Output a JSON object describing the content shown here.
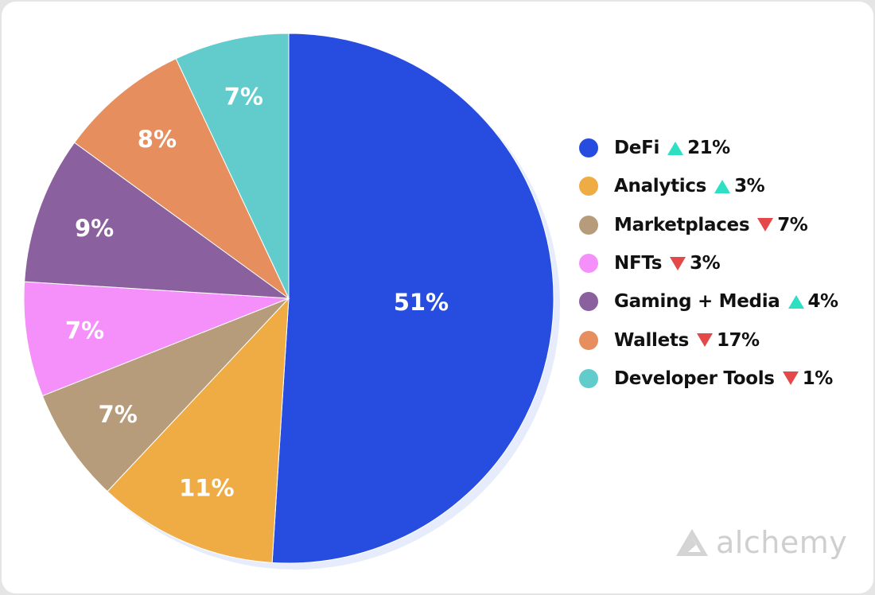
{
  "chart_data": {
    "type": "pie",
    "title": "",
    "start_angle_deg": 0,
    "direction": "clockwise",
    "categories": [
      "DeFi",
      "Analytics",
      "Marketplaces",
      "NFTs",
      "Gaming + Media",
      "Wallets",
      "Developer Tools"
    ],
    "values": [
      51,
      11,
      7,
      7,
      9,
      8,
      7
    ],
    "slice_labels": [
      "51%",
      "11%",
      "7%",
      "7%",
      "9%",
      "8%",
      "7%"
    ],
    "colors": [
      "#264ddf",
      "#efac45",
      "#b69c7a",
      "#f590fb",
      "#8a609f",
      "#e78e5f",
      "#62cccc"
    ],
    "legend": {
      "position": "right",
      "items": [
        {
          "label": "DeFi",
          "direction": "up",
          "change": "21%",
          "color": "#264ddf"
        },
        {
          "label": "Analytics",
          "direction": "up",
          "change": "3%",
          "color": "#efac45"
        },
        {
          "label": "Marketplaces",
          "direction": "down",
          "change": "7%",
          "color": "#b69c7a"
        },
        {
          "label": "NFTs",
          "direction": "down",
          "change": "3%",
          "color": "#f590fb"
        },
        {
          "label": "Gaming + Media",
          "direction": "up",
          "change": "4%",
          "color": "#8a609f"
        },
        {
          "label": "Wallets",
          "direction": "down",
          "change": "17%",
          "color": "#e78e5f"
        },
        {
          "label": "Developer Tools",
          "direction": "down",
          "change": "1%",
          "color": "#62cccc"
        }
      ]
    }
  },
  "branding": {
    "logo_text": "alchemy",
    "logo_icon": "alchemy-triangle-icon"
  },
  "colors": {
    "up": "#2de0c4",
    "down": "#e54848",
    "shadow": "#e6ecfc"
  }
}
